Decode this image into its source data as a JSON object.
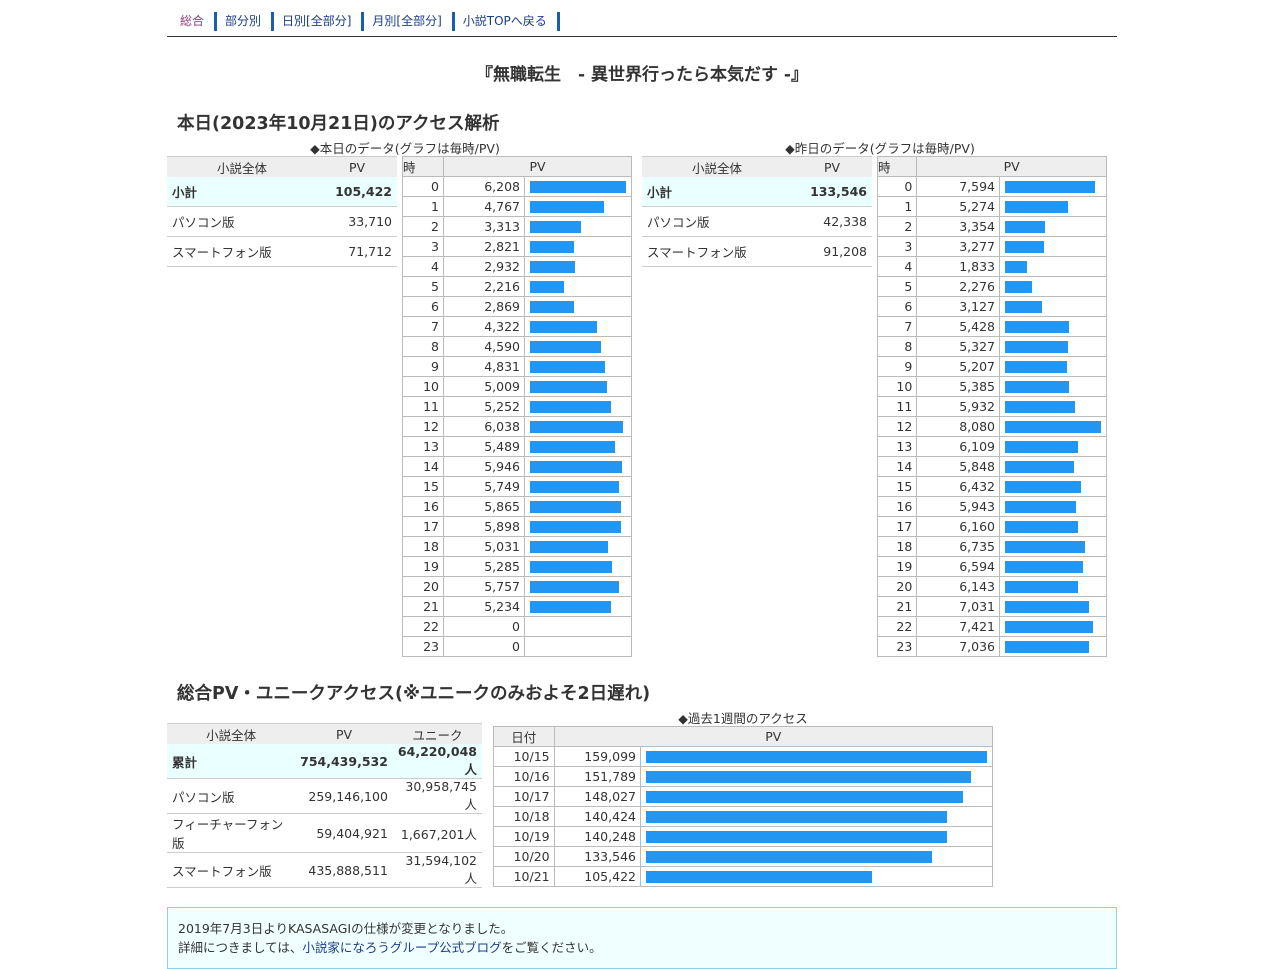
{
  "nav": {
    "items": [
      {
        "label": "総合",
        "current": true
      },
      {
        "label": "部分別",
        "current": false
      },
      {
        "label": "日別[全部分]",
        "current": false
      },
      {
        "label": "月別[全部分]",
        "current": false
      },
      {
        "label": "小説TOPへ戻る",
        "current": false
      }
    ]
  },
  "page_title": "『無職転生　- 異世界行ったら本気だす -』",
  "today_section": {
    "heading": "本日(2023年10月21日)のアクセス解析",
    "caption_today": "◆本日のデータ(グラフは毎時/PV)",
    "caption_yesterday": "◆昨日のデータ(グラフは毎時/PV)",
    "today_summary": {
      "headers": [
        "小説全体",
        "PV"
      ],
      "rows": [
        {
          "label": "小計",
          "value": "105,422"
        },
        {
          "label": "パソコン版",
          "value": "33,710"
        },
        {
          "label": "スマートフォン版",
          "value": "71,712"
        }
      ]
    },
    "yesterday_summary": {
      "headers": [
        "小説全体",
        "PV"
      ],
      "rows": [
        {
          "label": "小計",
          "value": "133,546"
        },
        {
          "label": "パソコン版",
          "value": "42,338"
        },
        {
          "label": "スマートフォン版",
          "value": "91,208"
        }
      ]
    },
    "hourly_headers": [
      "時",
      "PV"
    ],
    "today_hourly": [
      {
        "h": "0",
        "pv": "6,208",
        "n": 6208
      },
      {
        "h": "1",
        "pv": "4,767",
        "n": 4767
      },
      {
        "h": "2",
        "pv": "3,313",
        "n": 3313
      },
      {
        "h": "3",
        "pv": "2,821",
        "n": 2821
      },
      {
        "h": "4",
        "pv": "2,932",
        "n": 2932
      },
      {
        "h": "5",
        "pv": "2,216",
        "n": 2216
      },
      {
        "h": "6",
        "pv": "2,869",
        "n": 2869
      },
      {
        "h": "7",
        "pv": "4,322",
        "n": 4322
      },
      {
        "h": "8",
        "pv": "4,590",
        "n": 4590
      },
      {
        "h": "9",
        "pv": "4,831",
        "n": 4831
      },
      {
        "h": "10",
        "pv": "5,009",
        "n": 5009
      },
      {
        "h": "11",
        "pv": "5,252",
        "n": 5252
      },
      {
        "h": "12",
        "pv": "6,038",
        "n": 6038
      },
      {
        "h": "13",
        "pv": "5,489",
        "n": 5489
      },
      {
        "h": "14",
        "pv": "5,946",
        "n": 5946
      },
      {
        "h": "15",
        "pv": "5,749",
        "n": 5749
      },
      {
        "h": "16",
        "pv": "5,865",
        "n": 5865
      },
      {
        "h": "17",
        "pv": "5,898",
        "n": 5898
      },
      {
        "h": "18",
        "pv": "5,031",
        "n": 5031
      },
      {
        "h": "19",
        "pv": "5,285",
        "n": 5285
      },
      {
        "h": "20",
        "pv": "5,757",
        "n": 5757
      },
      {
        "h": "21",
        "pv": "5,234",
        "n": 5234
      },
      {
        "h": "22",
        "pv": "0",
        "n": 0
      },
      {
        "h": "23",
        "pv": "0",
        "n": 0
      }
    ],
    "yesterday_hourly": [
      {
        "h": "0",
        "pv": "7,594",
        "n": 7594
      },
      {
        "h": "1",
        "pv": "5,274",
        "n": 5274
      },
      {
        "h": "2",
        "pv": "3,354",
        "n": 3354
      },
      {
        "h": "3",
        "pv": "3,277",
        "n": 3277
      },
      {
        "h": "4",
        "pv": "1,833",
        "n": 1833
      },
      {
        "h": "5",
        "pv": "2,276",
        "n": 2276
      },
      {
        "h": "6",
        "pv": "3,127",
        "n": 3127
      },
      {
        "h": "7",
        "pv": "5,428",
        "n": 5428
      },
      {
        "h": "8",
        "pv": "5,327",
        "n": 5327
      },
      {
        "h": "9",
        "pv": "5,207",
        "n": 5207
      },
      {
        "h": "10",
        "pv": "5,385",
        "n": 5385
      },
      {
        "h": "11",
        "pv": "5,932",
        "n": 5932
      },
      {
        "h": "12",
        "pv": "8,080",
        "n": 8080
      },
      {
        "h": "13",
        "pv": "6,109",
        "n": 6109
      },
      {
        "h": "14",
        "pv": "5,848",
        "n": 5848
      },
      {
        "h": "15",
        "pv": "6,432",
        "n": 6432
      },
      {
        "h": "16",
        "pv": "5,943",
        "n": 5943
      },
      {
        "h": "17",
        "pv": "6,160",
        "n": 6160
      },
      {
        "h": "18",
        "pv": "6,735",
        "n": 6735
      },
      {
        "h": "19",
        "pv": "6,594",
        "n": 6594
      },
      {
        "h": "20",
        "pv": "6,143",
        "n": 6143
      },
      {
        "h": "21",
        "pv": "7,031",
        "n": 7031
      },
      {
        "h": "22",
        "pv": "7,421",
        "n": 7421
      },
      {
        "h": "23",
        "pv": "7,036",
        "n": 7036
      }
    ]
  },
  "total_section": {
    "heading": "総合PV・ユニークアクセス(※ユニークのみおよそ2日遅れ)",
    "caption_week": "◆過去1週間のアクセス",
    "summary": {
      "headers": [
        "小説全体",
        "PV",
        "ユニーク"
      ],
      "rows": [
        {
          "label": "累計",
          "pv": "754,439,532",
          "unique": "64,220,048人"
        },
        {
          "label": "パソコン版",
          "pv": "259,146,100",
          "unique": "30,958,745人"
        },
        {
          "label": "フィーチャーフォン版",
          "pv": "59,404,921",
          "unique": "1,667,201人"
        },
        {
          "label": "スマートフォン版",
          "pv": "435,888,511",
          "unique": "31,594,102人"
        }
      ]
    },
    "week_headers": [
      "日付",
      "PV"
    ],
    "week": [
      {
        "d": "10/15",
        "pv": "159,099",
        "n": 159099
      },
      {
        "d": "10/16",
        "pv": "151,789",
        "n": 151789
      },
      {
        "d": "10/17",
        "pv": "148,027",
        "n": 148027
      },
      {
        "d": "10/18",
        "pv": "140,424",
        "n": 140424
      },
      {
        "d": "10/19",
        "pv": "140,248",
        "n": 140248
      },
      {
        "d": "10/20",
        "pv": "133,546",
        "n": 133546
      },
      {
        "d": "10/21",
        "pv": "105,422",
        "n": 105422
      }
    ]
  },
  "info": {
    "line1": "2019年7月3日よりKASASAGIの仕様が変更となりました。",
    "line2_pre": "詳細につきましては、",
    "line2_link": "小説家になろうグループ公式ブログ",
    "line2_post": "をご覧ください。"
  },
  "bar_color": "#2196f3"
}
